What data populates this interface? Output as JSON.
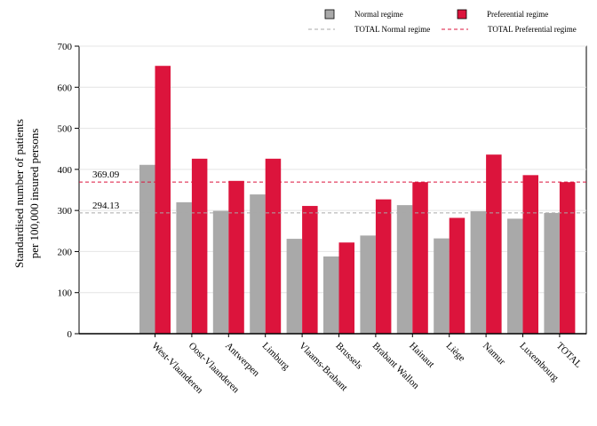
{
  "chart_data": {
    "type": "bar",
    "ylabel": [
      "Standardised number of patients",
      "per 100,000 insured persons"
    ],
    "xlabel": "",
    "ylim": [
      0,
      700
    ],
    "yticks": [
      0,
      100,
      200,
      300,
      400,
      500,
      600,
      700
    ],
    "grid": true,
    "legend_position": "top-right",
    "categories": [
      "West-Vlaanderen",
      "Oost-Vlaanderen",
      "Antwerpen",
      "Limburg",
      "Vlaams-Brabant",
      "Brussels",
      "Brabant Wallon",
      "Hainaut",
      "Liège",
      "Namur",
      "Luxembourg",
      "TOTAL"
    ],
    "series": [
      {
        "name": "Normal regime",
        "color": "#a9a9a9",
        "values": [
          411,
          320,
          299,
          339,
          231,
          188,
          239,
          313,
          232,
          298,
          280,
          294
        ]
      },
      {
        "name": "Preferential regime",
        "color": "#dc143c",
        "values": [
          652,
          426,
          372,
          426,
          311,
          222,
          327,
          369,
          282,
          436,
          386,
          369
        ]
      }
    ],
    "reference_lines": [
      {
        "name": "TOTAL Normal regime",
        "value": 294.13,
        "label": "294.13",
        "color": "#a9a9a9",
        "style": "dashed"
      },
      {
        "name": "TOTAL Preferential regime",
        "value": 369.09,
        "label": "369.09",
        "color": "#dc143c",
        "style": "dashed"
      }
    ]
  }
}
